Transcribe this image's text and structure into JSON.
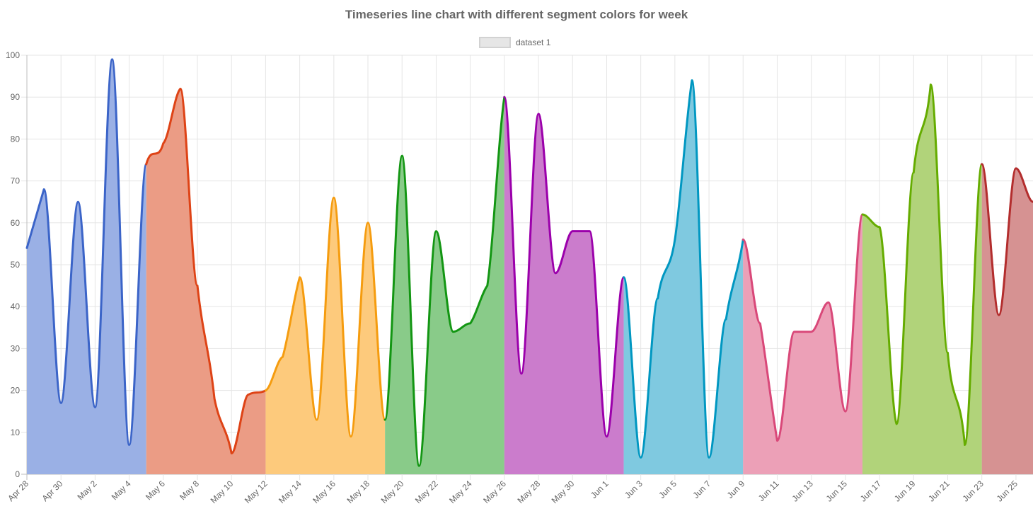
{
  "chart_data": {
    "type": "line",
    "title": "Timeseries line chart with different segment colors for week",
    "xlabel": "",
    "ylabel": "",
    "ylim": [
      0,
      100
    ],
    "yticks": [
      0,
      10,
      20,
      30,
      40,
      50,
      60,
      70,
      80,
      90,
      100
    ],
    "grid": true,
    "legend": {
      "position": "top",
      "entries": [
        "dataset 1"
      ]
    },
    "x_tick_labels": [
      "Apr 28",
      "Apr 30",
      "May 2",
      "May 4",
      "May 6",
      "May 8",
      "May 10",
      "May 12",
      "May 14",
      "May 16",
      "May 18",
      "May 20",
      "May 22",
      "May 24",
      "May 26",
      "May 28",
      "May 30",
      "Jun 1",
      "Jun 3",
      "Jun 5",
      "Jun 7",
      "Jun 9",
      "Jun 11",
      "Jun 13",
      "Jun 15",
      "Jun 17",
      "Jun 19",
      "Jun 21",
      "Jun 23",
      "Jun 25"
    ],
    "x_range": [
      "2024-04-28",
      "2024-06-26"
    ],
    "series": [
      {
        "name": "dataset 1",
        "x": [
          "2024-04-28",
          "2024-04-29",
          "2024-04-30",
          "2024-05-01",
          "2024-05-02",
          "2024-05-03",
          "2024-05-04",
          "2024-05-05",
          "2024-05-06",
          "2024-05-07",
          "2024-05-08",
          "2024-05-09",
          "2024-05-10",
          "2024-05-11",
          "2024-05-12",
          "2024-05-13",
          "2024-05-14",
          "2024-05-15",
          "2024-05-16",
          "2024-05-17",
          "2024-05-18",
          "2024-05-19",
          "2024-05-20",
          "2024-05-21",
          "2024-05-22",
          "2024-05-23",
          "2024-05-24",
          "2024-05-25",
          "2024-05-26",
          "2024-05-27",
          "2024-05-28",
          "2024-05-29",
          "2024-05-30",
          "2024-05-31",
          "2024-06-01",
          "2024-06-02",
          "2024-06-03",
          "2024-06-04",
          "2024-06-05",
          "2024-06-06",
          "2024-06-07",
          "2024-06-08",
          "2024-06-09",
          "2024-06-10",
          "2024-06-11",
          "2024-06-12",
          "2024-06-13",
          "2024-06-14",
          "2024-06-15",
          "2024-06-16",
          "2024-06-17",
          "2024-06-18",
          "2024-06-19",
          "2024-06-20",
          "2024-06-21",
          "2024-06-22",
          "2024-06-23",
          "2024-06-24",
          "2024-06-25",
          "2024-06-26"
        ],
        "values": [
          54,
          68,
          17,
          65,
          16,
          99,
          7,
          74,
          79,
          92,
          45,
          18,
          5,
          19,
          20,
          28,
          47,
          13,
          66,
          9,
          60,
          13,
          76,
          2,
          58,
          34,
          36,
          45,
          90,
          24,
          86,
          48,
          58,
          58,
          9,
          47,
          4,
          42,
          56,
          94,
          4,
          37,
          56,
          36,
          8,
          34,
          34,
          41,
          15,
          62,
          59,
          12,
          72,
          93,
          29,
          7,
          74,
          38,
          73,
          65
        ],
        "segment_colors": [
          "#3b64c8",
          "#de4316",
          "#f59c0f",
          "#139613",
          "#9b00ab",
          "#0097c1",
          "#d94879",
          "#65ac00",
          "#b32d2d"
        ],
        "fill_colors": [
          "#9ab0e5",
          "#eb9c85",
          "#fdca7c",
          "#89cb89",
          "#cb7ccc",
          "#7fc9e0",
          "#eca0b7",
          "#b1d37a",
          "#d69292"
        ]
      }
    ]
  }
}
